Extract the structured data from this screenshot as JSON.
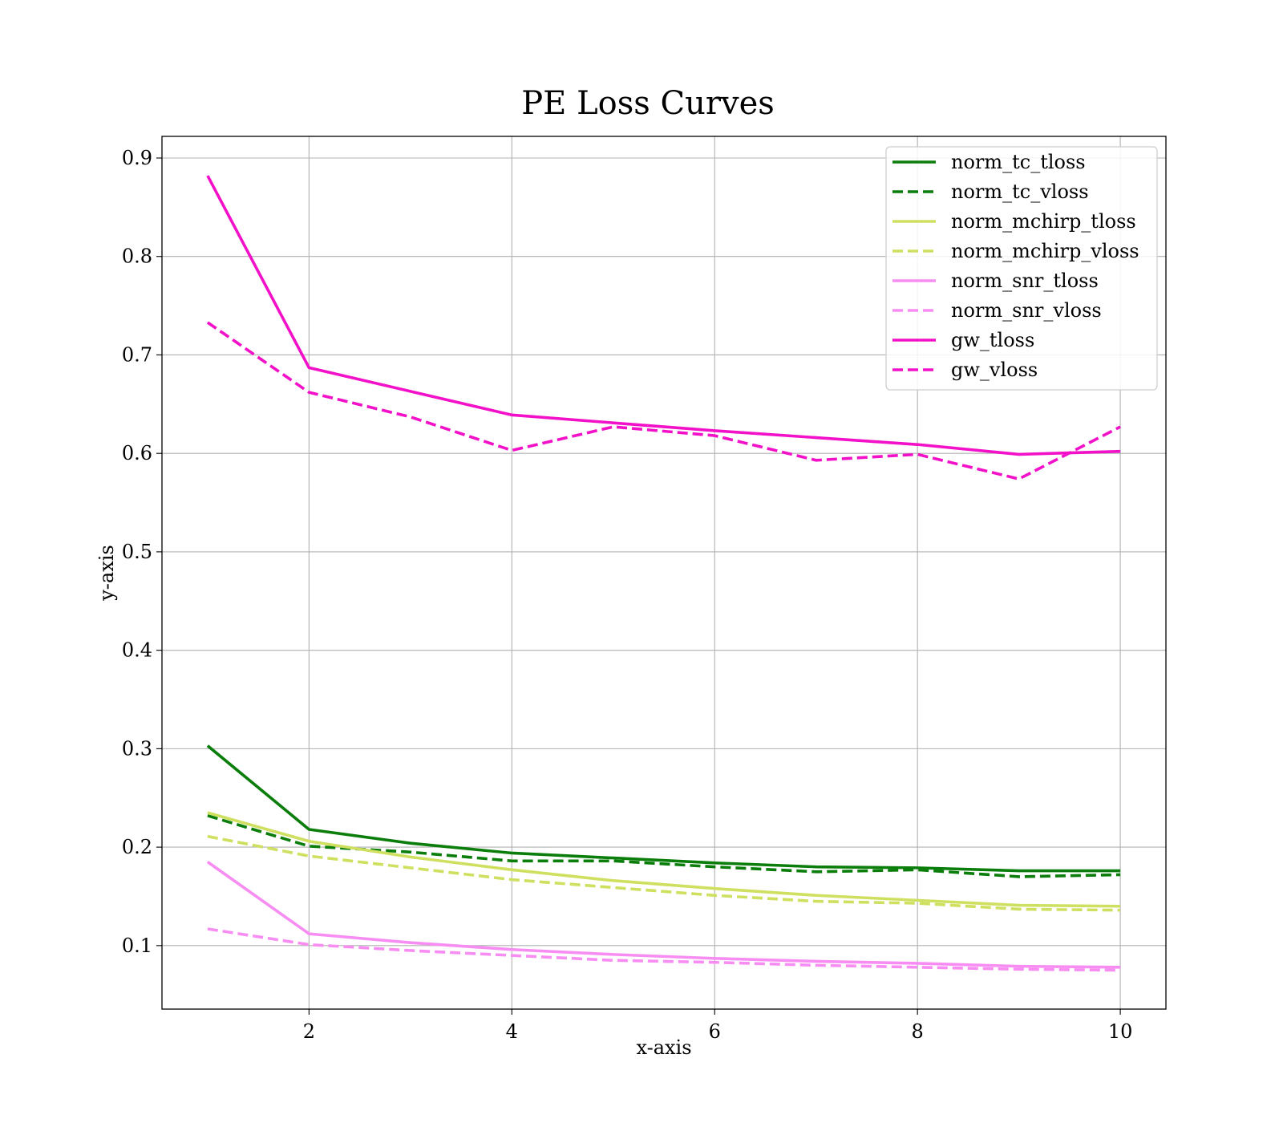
{
  "chart_data": {
    "type": "line",
    "title": "PE Loss Curves",
    "xlabel": "x-axis",
    "ylabel": "y-axis",
    "xlim": [
      0.55,
      10.45
    ],
    "ylim": [
      0.0355,
      0.922
    ],
    "xticks": [
      2,
      4,
      6,
      8,
      10
    ],
    "yticks": [
      0.1,
      0.2,
      0.3,
      0.4,
      0.5,
      0.6,
      0.7,
      0.8,
      0.9
    ],
    "xtick_labels": [
      "2",
      "4",
      "6",
      "8",
      "10"
    ],
    "ytick_labels": [
      "0.1",
      "0.2",
      "0.3",
      "0.4",
      "0.5",
      "0.6",
      "0.7",
      "0.8",
      "0.9"
    ],
    "grid": true,
    "legend_position": "top-right",
    "x": [
      1,
      2,
      3,
      4,
      5,
      6,
      7,
      8,
      9,
      10
    ],
    "series": [
      {
        "name": "norm_tc_tloss",
        "color": "#0a7d0a",
        "dash": "solid",
        "values": [
          0.303,
          0.218,
          0.204,
          0.194,
          0.189,
          0.184,
          0.18,
          0.179,
          0.176,
          0.176
        ]
      },
      {
        "name": "norm_tc_vloss",
        "color": "#0a7d0a",
        "dash": "dashed",
        "values": [
          0.232,
          0.201,
          0.195,
          0.186,
          0.186,
          0.18,
          0.175,
          0.177,
          0.17,
          0.172
        ]
      },
      {
        "name": "norm_mchirp_tloss",
        "color": "#cfe060",
        "dash": "solid",
        "values": [
          0.235,
          0.206,
          0.19,
          0.177,
          0.166,
          0.158,
          0.151,
          0.146,
          0.141,
          0.14
        ]
      },
      {
        "name": "norm_mchirp_vloss",
        "color": "#cfe060",
        "dash": "dashed",
        "values": [
          0.211,
          0.191,
          0.179,
          0.167,
          0.159,
          0.151,
          0.145,
          0.143,
          0.137,
          0.136
        ]
      },
      {
        "name": "norm_snr_tloss",
        "color": "#f78df2",
        "dash": "solid",
        "values": [
          0.185,
          0.112,
          0.103,
          0.096,
          0.091,
          0.087,
          0.084,
          0.082,
          0.079,
          0.078
        ]
      },
      {
        "name": "norm_snr_vloss",
        "color": "#f78df2",
        "dash": "dashed",
        "values": [
          0.117,
          0.101,
          0.095,
          0.09,
          0.085,
          0.083,
          0.08,
          0.078,
          0.076,
          0.075
        ]
      },
      {
        "name": "gw_tloss",
        "color": "#f210c8",
        "dash": "solid",
        "values": [
          0.882,
          0.687,
          0.663,
          0.639,
          0.631,
          0.623,
          0.616,
          0.609,
          0.599,
          0.602
        ]
      },
      {
        "name": "gw_vloss",
        "color": "#f210c8",
        "dash": "dashed",
        "values": [
          0.733,
          0.662,
          0.637,
          0.603,
          0.627,
          0.618,
          0.593,
          0.599,
          0.574,
          0.627
        ]
      }
    ]
  }
}
